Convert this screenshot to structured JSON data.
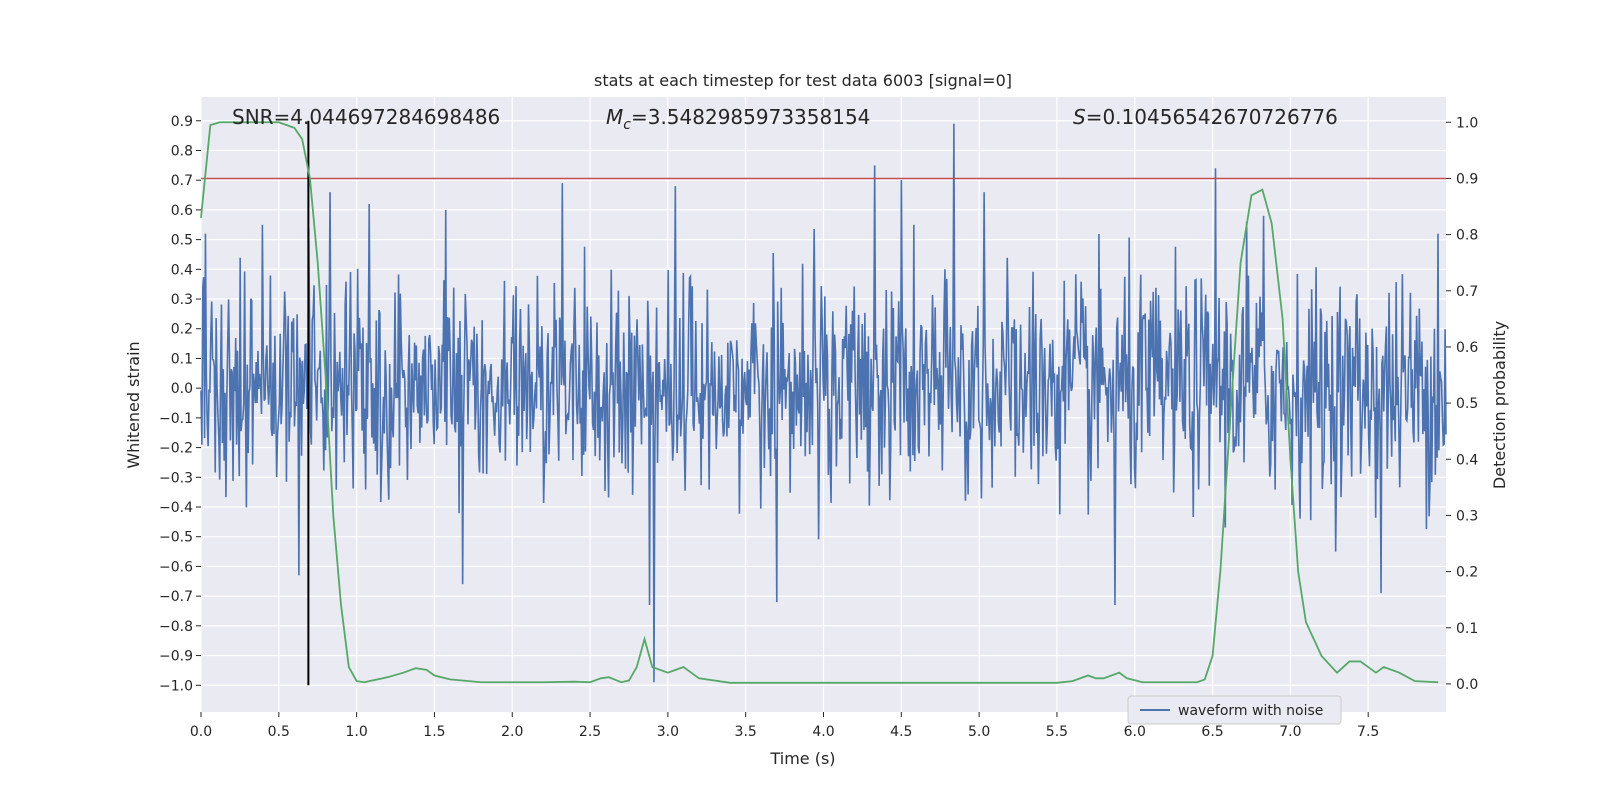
{
  "chart_data": {
    "type": "line",
    "title": "stats at each timestep for test data 6003 [signal=0]",
    "xlabel": "Time (s)",
    "ylabel_left": "Whitened strain",
    "ylabel_right": "Detection probability",
    "xlim": [
      0.0,
      8.0
    ],
    "ylim_left": [
      -1.09,
      0.98
    ],
    "ylim_right": [
      -0.05,
      1.045
    ],
    "x_ticks": [
      "0.0",
      "0.5",
      "1.0",
      "1.5",
      "2.0",
      "2.5",
      "3.0",
      "3.5",
      "4.0",
      "4.5",
      "5.0",
      "5.5",
      "6.0",
      "6.5",
      "7.0",
      "7.5"
    ],
    "x_tick_values": [
      0.0,
      0.5,
      1.0,
      1.5,
      2.0,
      2.5,
      3.0,
      3.5,
      4.0,
      4.5,
      5.0,
      5.5,
      6.0,
      6.5,
      7.0,
      7.5
    ],
    "y_left_ticks": [
      "0.9",
      "0.8",
      "0.7",
      "0.6",
      "0.5",
      "0.4",
      "0.3",
      "0.2",
      "0.1",
      "0.0",
      "−0.1",
      "−0.2",
      "−0.3",
      "−0.4",
      "−0.5",
      "−0.6",
      "−0.7",
      "−0.8",
      "−0.9",
      "−1.0"
    ],
    "y_left_tick_values": [
      0.9,
      0.8,
      0.7,
      0.6,
      0.5,
      0.4,
      0.3,
      0.2,
      0.1,
      0.0,
      -0.1,
      -0.2,
      -0.3,
      -0.4,
      -0.5,
      -0.6,
      -0.7,
      -0.8,
      -0.9,
      -1.0
    ],
    "y_right_ticks": [
      "1.0",
      "0.9",
      "0.8",
      "0.7",
      "0.6",
      "0.5",
      "0.4",
      "0.3",
      "0.2",
      "0.1",
      "0.0"
    ],
    "y_right_tick_values": [
      1.0,
      0.9,
      0.8,
      0.7,
      0.6,
      0.5,
      0.4,
      0.3,
      0.2,
      0.1,
      0.0
    ],
    "annotations": {
      "snr": "SNR=4.044697284698486",
      "mc_symbol": "M",
      "mc_subscript": "c",
      "mc_value": "=3.5482985973358154",
      "s_symbol": "S",
      "s_value": "=0.10456542670726776"
    },
    "threshold_line": {
      "axis": "right",
      "y": 0.9,
      "color": "#c44e52"
    },
    "marker_line": {
      "x": 0.69,
      "y_from": -1.0,
      "y_to": 0.9,
      "color": "#000000"
    },
    "waveform": {
      "name": "waveform with noise",
      "color": "#4c72b0",
      "n_samples": 1400,
      "typical_envelope": 0.33,
      "spikes": [
        {
          "x": 0.03,
          "y": 0.52
        },
        {
          "x": 0.63,
          "y": -0.63
        },
        {
          "x": 0.69,
          "y": 0.54
        },
        {
          "x": 0.83,
          "y": 0.66
        },
        {
          "x": 1.08,
          "y": 0.62
        },
        {
          "x": 1.57,
          "y": 0.6
        },
        {
          "x": 1.68,
          "y": -0.66
        },
        {
          "x": 2.32,
          "y": 0.69
        },
        {
          "x": 2.88,
          "y": -0.73
        },
        {
          "x": 2.91,
          "y": -0.99
        },
        {
          "x": 3.05,
          "y": 0.68
        },
        {
          "x": 3.7,
          "y": -0.72
        },
        {
          "x": 4.33,
          "y": 0.75
        },
        {
          "x": 4.5,
          "y": 0.7
        },
        {
          "x": 4.84,
          "y": 0.89
        },
        {
          "x": 5.03,
          "y": 0.66
        },
        {
          "x": 5.87,
          "y": -0.73
        },
        {
          "x": 6.52,
          "y": 0.74
        },
        {
          "x": 6.72,
          "y": 0.56
        },
        {
          "x": 6.83,
          "y": 0.58
        },
        {
          "x": 7.58,
          "y": -0.69
        },
        {
          "x": 7.95,
          "y": 0.52
        }
      ]
    },
    "detection_probability": {
      "color": "#55a868",
      "x": [
        0.0,
        0.06,
        0.12,
        0.2,
        0.3,
        0.4,
        0.5,
        0.6,
        0.65,
        0.7,
        0.75,
        0.8,
        0.85,
        0.9,
        0.95,
        1.0,
        1.05,
        1.1,
        1.2,
        1.3,
        1.38,
        1.45,
        1.5,
        1.6,
        1.8,
        2.0,
        2.2,
        2.4,
        2.5,
        2.57,
        2.62,
        2.7,
        2.75,
        2.8,
        2.85,
        2.9,
        3.0,
        3.05,
        3.1,
        3.2,
        3.4,
        3.6,
        3.8,
        4.0,
        4.5,
        5.0,
        5.5,
        5.6,
        5.7,
        5.75,
        5.8,
        5.9,
        5.95,
        6.05,
        6.4,
        6.45,
        6.5,
        6.55,
        6.62,
        6.68,
        6.75,
        6.82,
        6.88,
        6.95,
        7.0,
        7.05,
        7.1,
        7.2,
        7.3,
        7.38,
        7.45,
        7.5,
        7.55,
        7.6,
        7.7,
        7.8,
        7.95
      ],
      "y": [
        0.83,
        0.995,
        1.0,
        1.0,
        1.0,
        1.0,
        1.0,
        0.99,
        0.97,
        0.9,
        0.75,
        0.55,
        0.3,
        0.14,
        0.03,
        0.005,
        0.003,
        0.006,
        0.012,
        0.02,
        0.028,
        0.025,
        0.015,
        0.008,
        0.003,
        0.003,
        0.003,
        0.004,
        0.003,
        0.01,
        0.012,
        0.003,
        0.006,
        0.03,
        0.08,
        0.03,
        0.02,
        0.025,
        0.03,
        0.01,
        0.002,
        0.002,
        0.002,
        0.002,
        0.002,
        0.002,
        0.002,
        0.005,
        0.015,
        0.01,
        0.01,
        0.02,
        0.01,
        0.003,
        0.003,
        0.008,
        0.05,
        0.2,
        0.5,
        0.75,
        0.87,
        0.88,
        0.82,
        0.65,
        0.4,
        0.2,
        0.11,
        0.05,
        0.02,
        0.04,
        0.04,
        0.03,
        0.02,
        0.03,
        0.02,
        0.005,
        0.003
      ]
    }
  }
}
